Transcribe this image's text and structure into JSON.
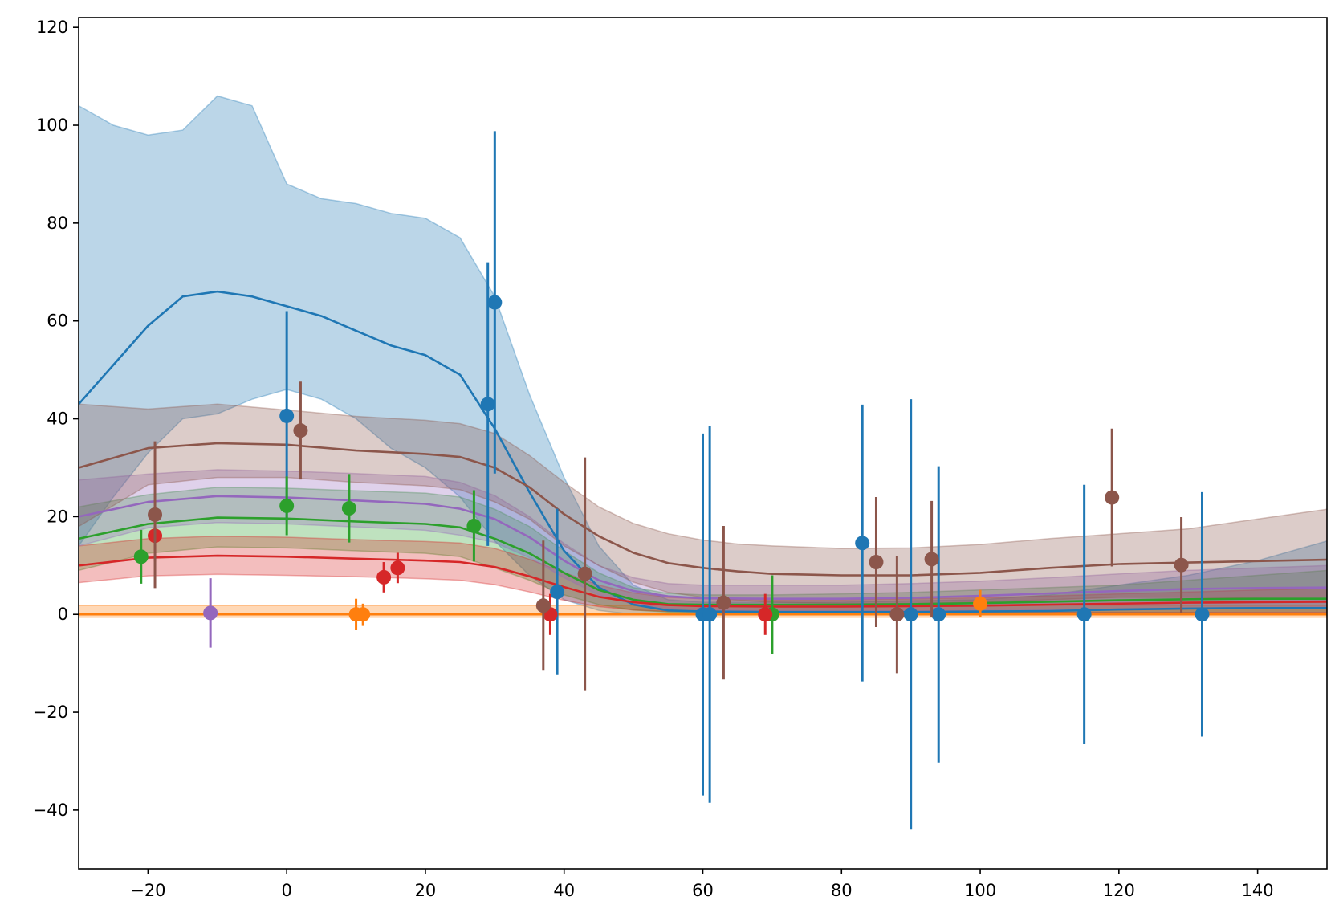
{
  "chart_data": {
    "type": "line",
    "title": "",
    "xlabel": "",
    "ylabel": "",
    "xlim": [
      -30,
      150
    ],
    "ylim": [
      -52,
      122
    ],
    "grid": false,
    "legend": "none",
    "x_ticks": [
      -20,
      0,
      20,
      40,
      60,
      80,
      100,
      120,
      140
    ],
    "x_tick_labels": [
      "−20",
      "0",
      "20",
      "40",
      "60",
      "80",
      "100",
      "120",
      "140"
    ],
    "y_ticks": [
      -40,
      -20,
      0,
      20,
      40,
      60,
      80,
      100,
      120
    ],
    "y_tick_labels": [
      "−40",
      "−20",
      "0",
      "20",
      "40",
      "60",
      "80",
      "100",
      "120"
    ],
    "series": [
      {
        "color": "#1f77b4",
        "curve_x": [
          -30,
          -25,
          -20,
          -15,
          -10,
          -5,
          0,
          5,
          10,
          15,
          20,
          25,
          30,
          35,
          40,
          45,
          50,
          55,
          60,
          70,
          80,
          90,
          100,
          110,
          120,
          130,
          140,
          150
        ],
        "curve_y": [
          43,
          51,
          59,
          65,
          66,
          65,
          63,
          61,
          58,
          55,
          53,
          49,
          38,
          25,
          13,
          5.5,
          2,
          0.8,
          0.6,
          0.5,
          0.5,
          0.5,
          0.6,
          0.7,
          1,
          1.2,
          1.3,
          1.3
        ],
        "band_upper": [
          104,
          100,
          98,
          99,
          106,
          104,
          88,
          85,
          84,
          82,
          81,
          77,
          65,
          45,
          28,
          14,
          6,
          3,
          2.5,
          2.5,
          2.5,
          2.8,
          3,
          4,
          6,
          8,
          11,
          15
        ],
        "band_lower": [
          14,
          24,
          33,
          40,
          41,
          44,
          46,
          44,
          40,
          34,
          30,
          24,
          15,
          8,
          3,
          0.8,
          0,
          0,
          0,
          0,
          0,
          0,
          0,
          0,
          0,
          0,
          0,
          0
        ],
        "points": [
          {
            "x": 0,
            "y": 40.6,
            "err": 21.4
          },
          {
            "x": 29,
            "y": 43,
            "err": 29
          },
          {
            "x": 30,
            "y": 63.8,
            "err": 35
          },
          {
            "x": 39,
            "y": 4.6,
            "err": 17
          },
          {
            "x": 60,
            "y": 0,
            "err": 37
          },
          {
            "x": 61,
            "y": 0,
            "err": 38.5
          },
          {
            "x": 83,
            "y": 14.6,
            "err": 28.3
          },
          {
            "x": 90,
            "y": 0,
            "err": 44
          },
          {
            "x": 94,
            "y": 0,
            "err": 30.3
          },
          {
            "x": 115,
            "y": 0,
            "err": 26.5
          },
          {
            "x": 132,
            "y": 0,
            "err": 25
          }
        ]
      },
      {
        "color": "#ff7f0e",
        "curve_x": [
          -30,
          150
        ],
        "curve_y": [
          0,
          0
        ],
        "band_upper": [
          1.8,
          1.8
        ],
        "band_lower": [
          -0.6,
          -0.6
        ],
        "points": [
          {
            "x": 10,
            "y": 0,
            "err": 3.2
          },
          {
            "x": 11,
            "y": 0,
            "err": 2.2
          },
          {
            "x": 100,
            "y": 2.2,
            "err": 2.8
          }
        ]
      },
      {
        "color": "#2ca02c",
        "curve_x": [
          -30,
          -20,
          -10,
          0,
          10,
          20,
          25,
          30,
          35,
          40,
          45,
          50,
          55,
          60,
          70,
          80,
          90,
          100,
          110,
          120,
          130,
          140,
          150
        ],
        "curve_y": [
          15.5,
          18.5,
          19.8,
          19.6,
          19,
          18.5,
          17.8,
          15.5,
          12.5,
          8.5,
          5,
          3,
          2.1,
          2,
          2,
          2,
          2.1,
          2.3,
          2.6,
          2.9,
          3.1,
          3.2,
          3.2
        ],
        "band_upper": [
          22,
          24.5,
          26,
          25.8,
          25.3,
          24.8,
          24,
          21.5,
          18,
          13,
          8.5,
          5.5,
          4.3,
          4,
          4,
          4.2,
          4.5,
          5,
          5.5,
          6,
          7,
          8,
          9
        ],
        "band_lower": [
          9,
          12.5,
          13.8,
          13.6,
          13,
          12.5,
          11.8,
          9.5,
          7,
          4,
          2,
          0.9,
          0.5,
          0.4,
          0.3,
          0.3,
          0.3,
          0.3,
          0.3,
          0.3,
          0.3,
          0.2,
          0.2
        ],
        "points": [
          {
            "x": -21,
            "y": 11.8,
            "err": 5.5
          },
          {
            "x": 0,
            "y": 22.2,
            "err": 6
          },
          {
            "x": 9,
            "y": 21.7,
            "err": 7
          },
          {
            "x": 27,
            "y": 18.1,
            "err": 7.3
          },
          {
            "x": 70,
            "y": 0,
            "err": 8
          }
        ]
      },
      {
        "color": "#d62728",
        "curve_x": [
          -30,
          -20,
          -10,
          0,
          10,
          20,
          25,
          30,
          35,
          40,
          45,
          50,
          55,
          60,
          70,
          80,
          90,
          100,
          110,
          120,
          130,
          140,
          150
        ],
        "curve_y": [
          10,
          11.6,
          12,
          11.8,
          11.4,
          11,
          10.7,
          9.7,
          7.8,
          5.6,
          3.6,
          2.5,
          1.9,
          1.7,
          1.6,
          1.6,
          1.7,
          1.8,
          2,
          2.2,
          2.4,
          2.5,
          2.6
        ],
        "band_upper": [
          14,
          15.5,
          16,
          15.8,
          15.3,
          14.9,
          14.6,
          13.5,
          11.3,
          8.6,
          6,
          4.4,
          3.5,
          3.2,
          3,
          3,
          3.2,
          3.4,
          3.8,
          4.2,
          4.6,
          5,
          5.3
        ],
        "band_lower": [
          6.5,
          7.9,
          8.2,
          8,
          7.7,
          7.3,
          7,
          6.1,
          4.6,
          2.9,
          1.6,
          0.9,
          0.6,
          0.5,
          0.4,
          0.4,
          0.4,
          0.4,
          0.4,
          0.4,
          0.4,
          0.4,
          0.4
        ],
        "points": [
          {
            "x": -19,
            "y": 16.1,
            "err": 5.3
          },
          {
            "x": 14,
            "y": 7.6,
            "err": 3.1
          },
          {
            "x": 16,
            "y": 9.5,
            "err": 3.1
          },
          {
            "x": 38,
            "y": 0,
            "err": 4.2
          },
          {
            "x": 69,
            "y": 0,
            "err": 4.2
          }
        ]
      },
      {
        "color": "#9467bd",
        "curve_x": [
          -30,
          -20,
          -10,
          0,
          10,
          20,
          25,
          30,
          35,
          40,
          45,
          50,
          55,
          60,
          70,
          80,
          90,
          100,
          110,
          120,
          130,
          140,
          150
        ],
        "curve_y": [
          20,
          23,
          24.2,
          23.9,
          23.3,
          22.6,
          21.6,
          19.5,
          15.8,
          11,
          7,
          4.8,
          3.7,
          3.3,
          3.2,
          3.2,
          3.4,
          3.8,
          4.3,
          4.8,
          5.2,
          5.4,
          5.5
        ],
        "band_upper": [
          27.5,
          28.7,
          29.6,
          29.3,
          28.8,
          28.2,
          27,
          24.3,
          20,
          14.5,
          10,
          7.5,
          6.3,
          6,
          6,
          6,
          6.3,
          6.8,
          7.5,
          8.3,
          9,
          9.5,
          10
        ],
        "band_lower": [
          14,
          17.7,
          18.8,
          18.5,
          17.9,
          17.2,
          16.2,
          14.7,
          11.6,
          7.5,
          4,
          2.1,
          1.2,
          0.9,
          0.7,
          0.7,
          0.7,
          0.8,
          0.9,
          1.1,
          1.3,
          1.4,
          1.5
        ],
        "points": [
          {
            "x": -11,
            "y": 0.3,
            "err": 7.1
          }
        ]
      },
      {
        "color": "#8c564b",
        "curve_x": [
          -30,
          -20,
          -10,
          0,
          10,
          20,
          25,
          30,
          35,
          40,
          45,
          50,
          55,
          60,
          65,
          70,
          80,
          90,
          100,
          110,
          120,
          130,
          140,
          150
        ],
        "curve_y": [
          30,
          34,
          35,
          34.7,
          33.5,
          32.8,
          32.2,
          30,
          26,
          20.5,
          16,
          12.6,
          10.5,
          9.5,
          8.8,
          8.3,
          8,
          8,
          8.5,
          9.5,
          10.3,
          10.6,
          10.9,
          11.2
        ],
        "band_upper": [
          43,
          42,
          43,
          41.8,
          40.5,
          39.7,
          39,
          37,
          32.5,
          27,
          22,
          18.6,
          16.5,
          15.2,
          14.4,
          14,
          13.5,
          13.6,
          14.3,
          15.5,
          16.5,
          17.5,
          19.5,
          21.5
        ],
        "band_lower": [
          18,
          26.5,
          28,
          28,
          27,
          26.3,
          25.5,
          23,
          19.5,
          14,
          10,
          6.6,
          4.5,
          3.5,
          2.9,
          2.5,
          2.2,
          2.2,
          2.5,
          3,
          3.5,
          3.5,
          3.3,
          3
        ],
        "points": [
          {
            "x": -19,
            "y": 20.4,
            "err": 15
          },
          {
            "x": 2,
            "y": 37.6,
            "err": 10
          },
          {
            "x": 37,
            "y": 1.8,
            "err": 13.3
          },
          {
            "x": 43,
            "y": 8.3,
            "err": 23.8
          },
          {
            "x": 63,
            "y": 2.4,
            "err": 15.7
          },
          {
            "x": 85,
            "y": 10.7,
            "err": 13.3
          },
          {
            "x": 88,
            "y": 0,
            "err": 12
          },
          {
            "x": 93,
            "y": 11.3,
            "err": 11.9
          },
          {
            "x": 119,
            "y": 23.9,
            "err": 14.1
          },
          {
            "x": 129,
            "y": 10.1,
            "err": 9.8
          }
        ]
      }
    ]
  }
}
